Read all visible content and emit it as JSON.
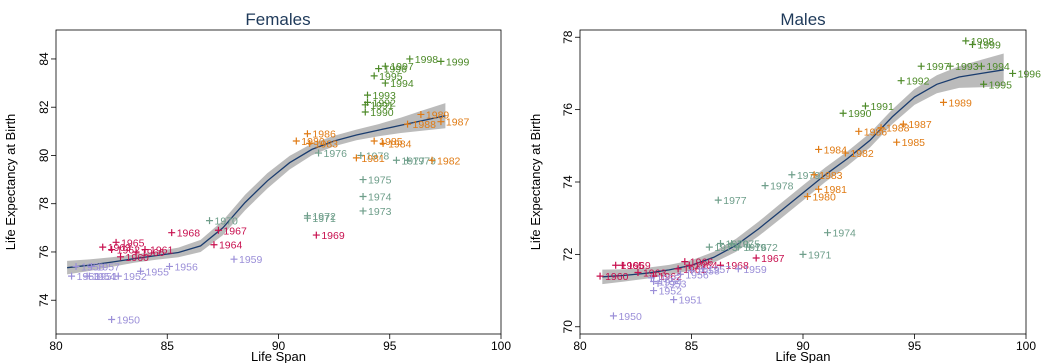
{
  "chart_data": [
    {
      "type": "scatter",
      "title": "Females",
      "xlabel": "Life Span",
      "ylabel": "Life Expectancy at Birth",
      "xlim": [
        80,
        100
      ],
      "ylim": [
        72.6,
        85.2
      ],
      "xticks": [
        80,
        85,
        90,
        95,
        100
      ],
      "yticks": [
        74,
        76,
        78,
        80,
        82,
        84
      ],
      "series": [
        {
          "color": "#c8104f",
          "points": [
            {
              "label": "1960",
              "x": 82.9,
              "y": 75.8
            },
            {
              "label": "1961",
              "x": 84.0,
              "y": 76.1
            },
            {
              "label": "1962",
              "x": 82.5,
              "y": 76.1
            },
            {
              "label": "1963",
              "x": 82.1,
              "y": 76.2
            },
            {
              "label": "1964",
              "x": 87.1,
              "y": 76.3
            },
            {
              "label": "1965",
              "x": 82.7,
              "y": 76.4
            },
            {
              "label": "1966",
              "x": 83.6,
              "y": 76.0
            },
            {
              "label": "1967",
              "x": 87.3,
              "y": 76.9
            },
            {
              "label": "1968",
              "x": 85.2,
              "y": 76.8
            },
            {
              "label": "1969",
              "x": 91.7,
              "y": 76.7
            }
          ]
        },
        {
          "color": "#6e9e8a",
          "points": [
            {
              "label": "1970",
              "x": 86.9,
              "y": 77.3
            },
            {
              "label": "1971",
              "x": 91.3,
              "y": 77.4
            },
            {
              "label": "1972",
              "x": 91.3,
              "y": 77.5
            },
            {
              "label": "1973",
              "x": 93.8,
              "y": 77.7
            },
            {
              "label": "1974",
              "x": 93.8,
              "y": 78.3
            },
            {
              "label": "1975",
              "x": 93.8,
              "y": 79.0
            },
            {
              "label": "1976",
              "x": 91.8,
              "y": 80.1
            },
            {
              "label": "1977",
              "x": 95.3,
              "y": 79.8
            },
            {
              "label": "1978",
              "x": 93.7,
              "y": 80.0
            },
            {
              "label": "1979",
              "x": 95.8,
              "y": 79.8
            }
          ]
        },
        {
          "color": "#e07b14",
          "points": [
            {
              "label": "1980",
              "x": 90.8,
              "y": 80.6
            },
            {
              "label": "1981",
              "x": 93.5,
              "y": 79.9
            },
            {
              "label": "1982",
              "x": 96.9,
              "y": 79.8
            },
            {
              "label": "1983",
              "x": 91.4,
              "y": 80.5
            },
            {
              "label": "1984",
              "x": 94.7,
              "y": 80.5
            },
            {
              "label": "1985",
              "x": 94.3,
              "y": 80.6
            },
            {
              "label": "1986",
              "x": 91.3,
              "y": 80.9
            },
            {
              "label": "1987",
              "x": 97.3,
              "y": 81.4
            },
            {
              "label": "1988",
              "x": 95.8,
              "y": 81.3
            },
            {
              "label": "1989",
              "x": 96.4,
              "y": 81.7
            }
          ]
        },
        {
          "color": "#4d8a28",
          "points": [
            {
              "label": "1990",
              "x": 93.9,
              "y": 81.8
            },
            {
              "label": "1991",
              "x": 93.9,
              "y": 82.1
            },
            {
              "label": "1992",
              "x": 94.0,
              "y": 82.2
            },
            {
              "label": "1993",
              "x": 94.0,
              "y": 82.5
            },
            {
              "label": "1994",
              "x": 94.8,
              "y": 83.0
            },
            {
              "label": "1995",
              "x": 94.3,
              "y": 83.3
            },
            {
              "label": "1996",
              "x": 94.5,
              "y": 83.6
            },
            {
              "label": "1997",
              "x": 94.8,
              "y": 83.7
            },
            {
              "label": "1998",
              "x": 95.9,
              "y": 84.0
            },
            {
              "label": "1999",
              "x": 97.3,
              "y": 83.9
            }
          ]
        },
        {
          "color": "#9b8fd8",
          "points": [
            {
              "label": "1950",
              "x": 82.5,
              "y": 73.2
            },
            {
              "label": "1951",
              "x": 81.5,
              "y": 75.0
            },
            {
              "label": "1952",
              "x": 82.8,
              "y": 75.0
            },
            {
              "label": "1953",
              "x": 80.7,
              "y": 75.0
            },
            {
              "label": "1954",
              "x": 81.4,
              "y": 75.0
            },
            {
              "label": "1955",
              "x": 83.8,
              "y": 75.2
            },
            {
              "label": "1956",
              "x": 85.1,
              "y": 75.4
            },
            {
              "label": "1957",
              "x": 81.6,
              "y": 75.4
            },
            {
              "label": "1958",
              "x": 80.9,
              "y": 75.4
            },
            {
              "label": "1959",
              "x": 88.0,
              "y": 75.7
            }
          ]
        }
      ],
      "smooth": {
        "x": [
          80.5,
          81.5,
          82.5,
          83.5,
          84.5,
          85.5,
          86.5,
          87.5,
          88.5,
          89.5,
          90.5,
          91.5,
          92.5,
          93.5,
          94.5,
          95.5,
          96.5,
          97.5
        ],
        "y": [
          75.35,
          75.45,
          75.58,
          75.72,
          75.85,
          75.98,
          76.25,
          77.0,
          78.05,
          78.95,
          79.7,
          80.25,
          80.6,
          80.85,
          81.05,
          81.25,
          81.45,
          81.65
        ],
        "band": [
          0.28,
          0.24,
          0.2,
          0.17,
          0.17,
          0.2,
          0.25,
          0.3,
          0.32,
          0.32,
          0.28,
          0.24,
          0.22,
          0.22,
          0.25,
          0.32,
          0.42,
          0.52
        ]
      }
    },
    {
      "type": "scatter",
      "title": "Males",
      "xlabel": "Life Span",
      "ylabel": "Life Expectancy at Birth",
      "xlim": [
        80,
        100
      ],
      "ylim": [
        69.8,
        78.2
      ],
      "xticks": [
        80,
        85,
        90,
        95,
        100
      ],
      "yticks": [
        70,
        72,
        74,
        76,
        78
      ],
      "series": [
        {
          "color": "#c8104f",
          "points": [
            {
              "label": "1960",
              "x": 80.9,
              "y": 71.4
            },
            {
              "label": "1961",
              "x": 84.4,
              "y": 71.6
            },
            {
              "label": "1962",
              "x": 83.3,
              "y": 71.4
            },
            {
              "label": "1963",
              "x": 82.6,
              "y": 71.5
            },
            {
              "label": "1964",
              "x": 84.9,
              "y": 71.7
            },
            {
              "label": "1965",
              "x": 81.6,
              "y": 71.7
            },
            {
              "label": "1966",
              "x": 84.7,
              "y": 71.8
            },
            {
              "label": "1967",
              "x": 87.9,
              "y": 71.9
            },
            {
              "label": "1968",
              "x": 86.3,
              "y": 71.7
            },
            {
              "label": "1969",
              "x": 81.9,
              "y": 71.7
            }
          ]
        },
        {
          "color": "#6e9e8a",
          "points": [
            {
              "label": "1970",
              "x": 86.3,
              "y": 72.3
            },
            {
              "label": "1971",
              "x": 90.0,
              "y": 72.0
            },
            {
              "label": "1972",
              "x": 87.6,
              "y": 72.2
            },
            {
              "label": "1973",
              "x": 85.8,
              "y": 72.2
            },
            {
              "label": "1974",
              "x": 91.1,
              "y": 72.6
            },
            {
              "label": "1975",
              "x": 86.8,
              "y": 72.3
            },
            {
              "label": "1976",
              "x": 87.1,
              "y": 72.2
            },
            {
              "label": "1977",
              "x": 86.2,
              "y": 73.5
            },
            {
              "label": "1978",
              "x": 88.3,
              "y": 73.9
            },
            {
              "label": "1979",
              "x": 89.5,
              "y": 74.2
            }
          ]
        },
        {
          "color": "#e07b14",
          "points": [
            {
              "label": "1980",
              "x": 90.2,
              "y": 73.6
            },
            {
              "label": "1981",
              "x": 90.7,
              "y": 73.8
            },
            {
              "label": "1982",
              "x": 91.9,
              "y": 74.8
            },
            {
              "label": "1983",
              "x": 90.5,
              "y": 74.2
            },
            {
              "label": "1984",
              "x": 90.7,
              "y": 74.9
            },
            {
              "label": "1985",
              "x": 94.2,
              "y": 75.1
            },
            {
              "label": "1986",
              "x": 92.5,
              "y": 75.4
            },
            {
              "label": "1987",
              "x": 94.5,
              "y": 75.6
            },
            {
              "label": "1988",
              "x": 93.5,
              "y": 75.5
            },
            {
              "label": "1989",
              "x": 96.3,
              "y": 76.2
            }
          ]
        },
        {
          "color": "#4d8a28",
          "points": [
            {
              "label": "1990",
              "x": 91.8,
              "y": 75.9
            },
            {
              "label": "1991",
              "x": 92.8,
              "y": 76.1
            },
            {
              "label": "1992",
              "x": 94.4,
              "y": 76.8
            },
            {
              "label": "1993",
              "x": 96.6,
              "y": 77.2
            },
            {
              "label": "1994",
              "x": 98.0,
              "y": 77.2
            },
            {
              "label": "1995",
              "x": 98.1,
              "y": 76.7
            },
            {
              "label": "1996",
              "x": 99.4,
              "y": 77.0
            },
            {
              "label": "1997",
              "x": 95.3,
              "y": 77.2
            },
            {
              "label": "1998",
              "x": 97.3,
              "y": 77.9
            },
            {
              "label": "1999",
              "x": 97.6,
              "y": 77.8
            }
          ]
        },
        {
          "color": "#9b8fd8",
          "points": [
            {
              "label": "1950",
              "x": 81.5,
              "y": 70.3
            },
            {
              "label": "1951",
              "x": 84.2,
              "y": 70.75
            },
            {
              "label": "1952",
              "x": 83.3,
              "y": 71.0
            },
            {
              "label": "1953",
              "x": 83.5,
              "y": 71.2
            },
            {
              "label": "1954",
              "x": 83.3,
              "y": 71.25
            },
            {
              "label": "1955",
              "x": 83.2,
              "y": 71.35
            },
            {
              "label": "1956",
              "x": 84.5,
              "y": 71.45
            },
            {
              "label": "1957",
              "x": 85.5,
              "y": 71.6
            },
            {
              "label": "1958",
              "x": 85.0,
              "y": 71.55
            },
            {
              "label": "1959",
              "x": 87.1,
              "y": 71.6
            }
          ]
        }
      ],
      "smooth": {
        "x": [
          81.0,
          82.0,
          83.0,
          84.0,
          85.0,
          86.0,
          87.0,
          88.0,
          89.0,
          90.0,
          91.0,
          92.0,
          93.0,
          94.0,
          95.0,
          96.0,
          97.0,
          98.0,
          99.0
        ],
        "y": [
          71.38,
          71.42,
          71.48,
          71.57,
          71.7,
          71.92,
          72.25,
          72.7,
          73.2,
          73.7,
          74.2,
          74.65,
          75.15,
          75.8,
          76.35,
          76.7,
          76.9,
          77.0,
          77.1
        ],
        "band": [
          0.2,
          0.17,
          0.15,
          0.14,
          0.14,
          0.15,
          0.18,
          0.2,
          0.21,
          0.21,
          0.2,
          0.2,
          0.2,
          0.2,
          0.22,
          0.25,
          0.3,
          0.38,
          0.45
        ]
      }
    }
  ]
}
